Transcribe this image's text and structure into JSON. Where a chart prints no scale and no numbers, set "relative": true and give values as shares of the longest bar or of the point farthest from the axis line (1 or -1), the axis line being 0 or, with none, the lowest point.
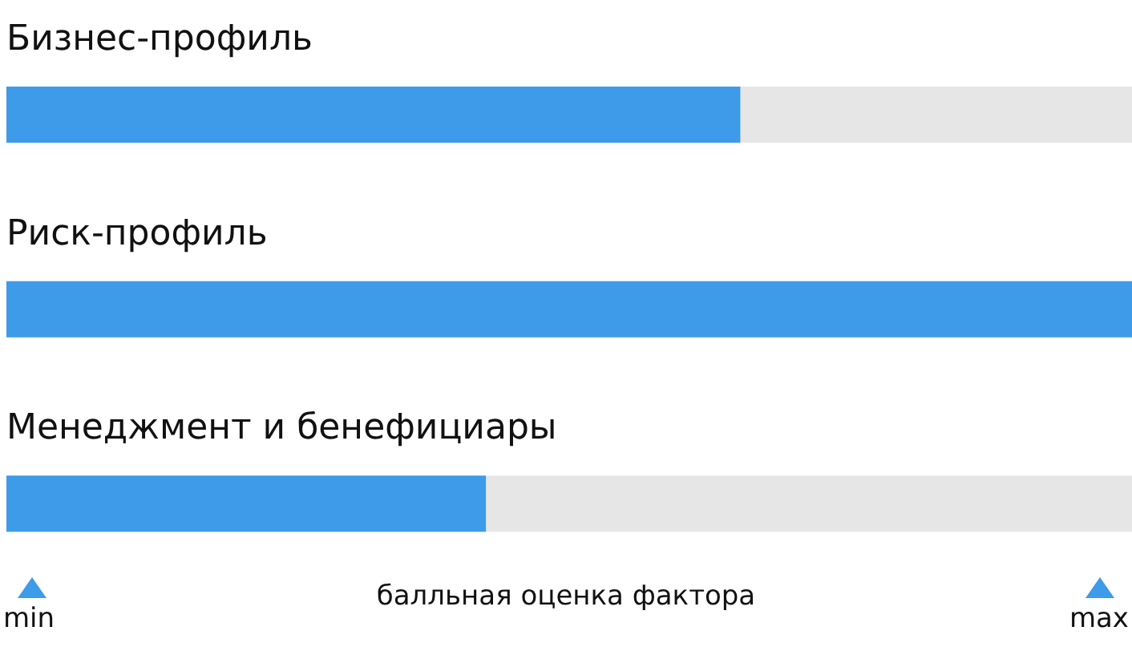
{
  "chart_data": {
    "type": "bar",
    "orientation": "horizontal",
    "relative": true,
    "categories": [
      "Бизнес-профиль",
      "Риск-профиль",
      "Менеджмент и бенефициары"
    ],
    "values": [
      0.652,
      1,
      0.426
    ],
    "color": "#3d9be9",
    "xlabel": "балльная оценка фактора",
    "annotations": [
      "min",
      "max"
    ]
  }
}
